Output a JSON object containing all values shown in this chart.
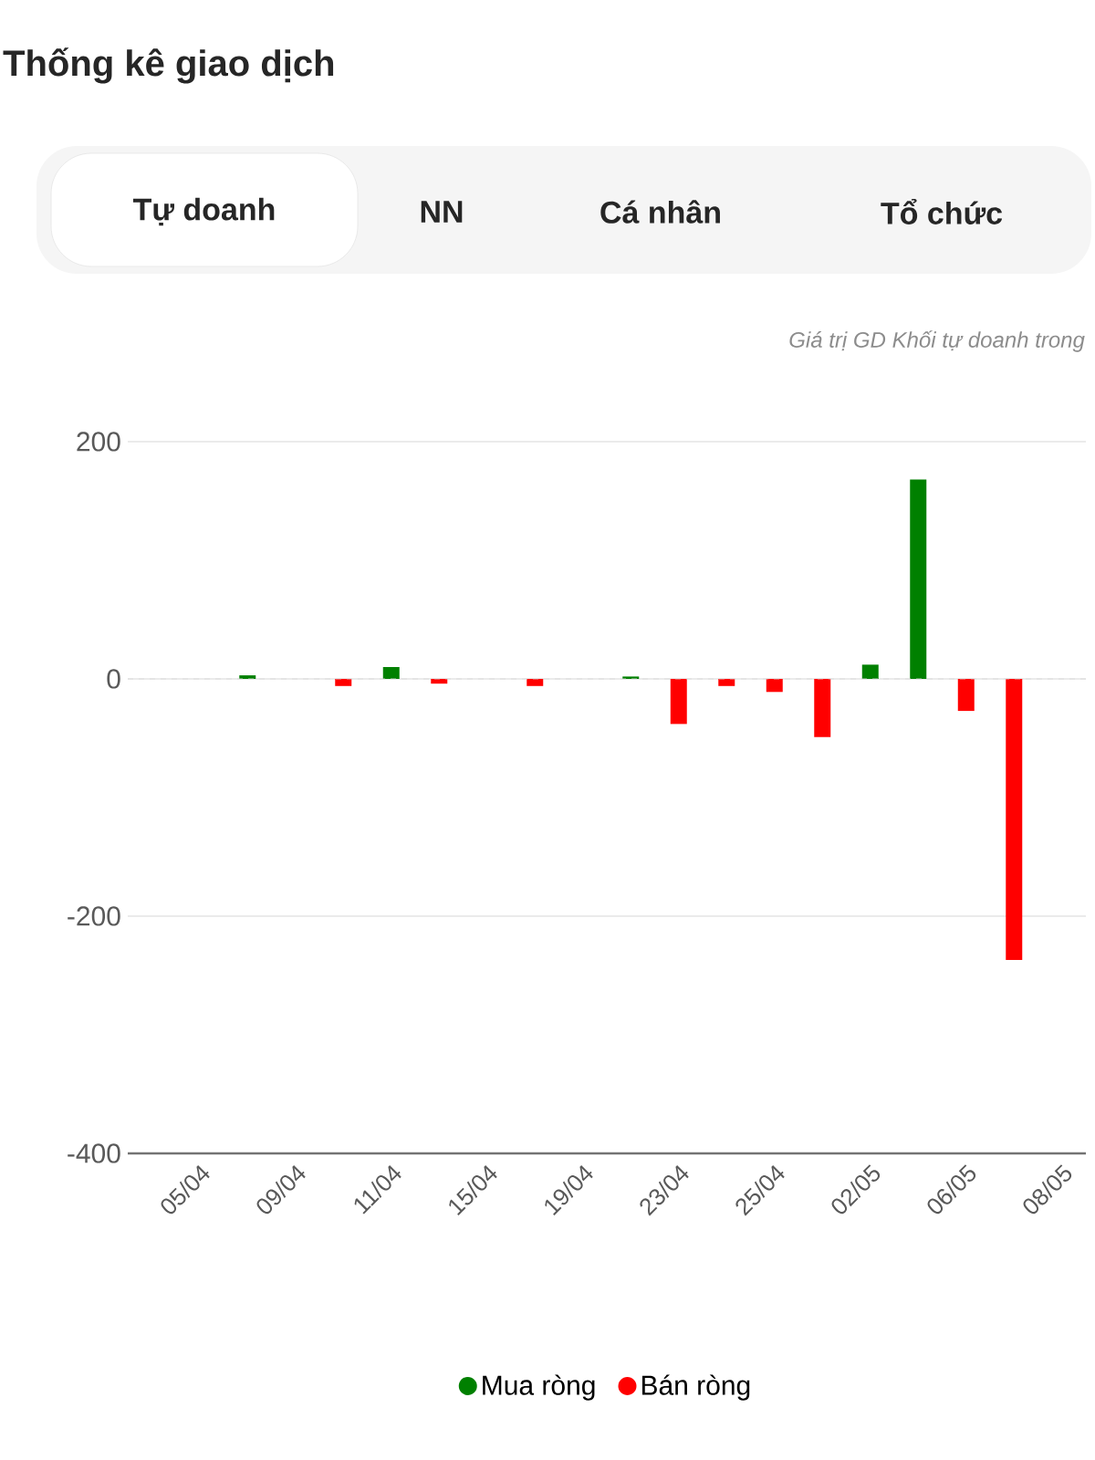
{
  "chart_data": {
    "type": "bar",
    "title": "Thống kê giao dịch",
    "subtitle": "Giá trị GD Khối tự doanh trong",
    "annotations": [
      "Tự doanh",
      "NN",
      "Cá nhân",
      "Tổ chức"
    ],
    "categories": [
      null,
      "05/04",
      null,
      "09/04",
      null,
      "11/04",
      null,
      "15/04",
      null,
      "19/04",
      null,
      "23/04",
      null,
      "25/04",
      null,
      "02/05",
      null,
      "06/05",
      null,
      "08/05"
    ],
    "series": [
      {
        "name": "Mua ròng",
        "color": "#008000",
        "values": [
          null,
          null,
          3,
          null,
          null,
          10,
          null,
          null,
          null,
          null,
          2,
          null,
          null,
          null,
          null,
          12,
          168,
          null,
          null,
          null
        ]
      },
      {
        "name": "Bán ròng",
        "color": "#ff0000",
        "values": [
          null,
          null,
          null,
          null,
          -6,
          null,
          -4,
          null,
          -6,
          null,
          null,
          -38,
          -6,
          -11,
          -49,
          null,
          null,
          -27,
          -237,
          null
        ]
      }
    ],
    "ylim": [
      -400,
      200
    ],
    "yticks": [
      200,
      0,
      -200,
      -400
    ],
    "ref_lines": [
      {
        "axis": "y",
        "value": 0,
        "color": "#d9d9d9",
        "line_style": "dashed"
      }
    ],
    "grid": "y",
    "legend": "bottom"
  }
}
